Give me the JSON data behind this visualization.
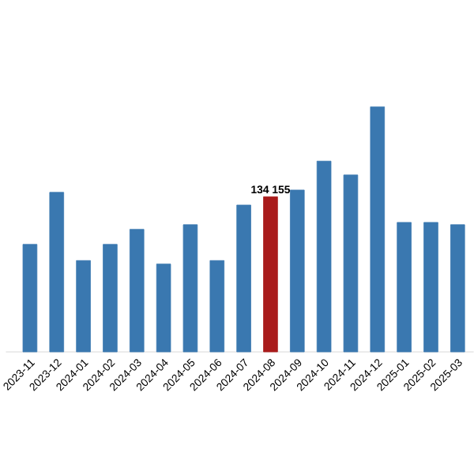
{
  "chart_data": {
    "type": "bar",
    "categories": [
      "2023-11",
      "2023-12",
      "2024-01",
      "2024-02",
      "2024-03",
      "2024-04",
      "2024-05",
      "2024-06",
      "2024-07",
      "2024-08",
      "2024-09",
      "2024-10",
      "2024-11",
      "2024-12",
      "2025-01",
      "2025-02",
      "2025-03"
    ],
    "values": [
      93000,
      138000,
      79000,
      93000,
      106000,
      76000,
      110000,
      79000,
      127000,
      134155,
      140000,
      165000,
      153000,
      212000,
      112000,
      112000,
      110000
    ],
    "colors": [
      "#3a78b0",
      "#3a78b0",
      "#3a78b0",
      "#3a78b0",
      "#3a78b0",
      "#3a78b0",
      "#3a78b0",
      "#3a78b0",
      "#3a78b0",
      "#a91b1b",
      "#3a78b0",
      "#3a78b0",
      "#3a78b0",
      "#3a78b0",
      "#3a78b0",
      "#3a78b0",
      "#3a78b0"
    ],
    "value_labels": [
      null,
      null,
      null,
      null,
      null,
      null,
      null,
      null,
      null,
      "134 155",
      null,
      null,
      null,
      null,
      null,
      null,
      null
    ],
    "tick_labels": "x"
  }
}
